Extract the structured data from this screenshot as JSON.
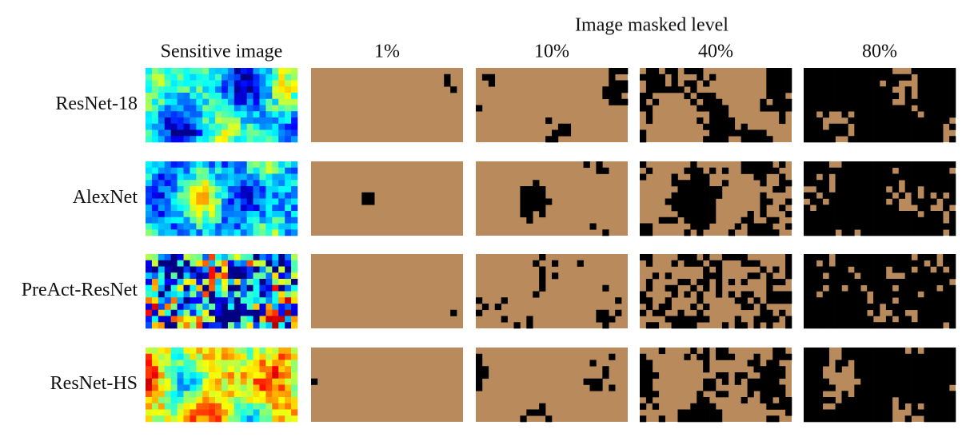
{
  "header": {
    "title": "Image masked level",
    "columns": [
      "Sensitive image",
      "1%",
      "10%",
      "40%",
      "80%"
    ]
  },
  "rows": [
    {
      "label": "ResNet-18"
    },
    {
      "label": "AlexNet"
    },
    {
      "label": "PreAct-ResNet"
    },
    {
      "label": "ResNet-HS"
    }
  ]
}
